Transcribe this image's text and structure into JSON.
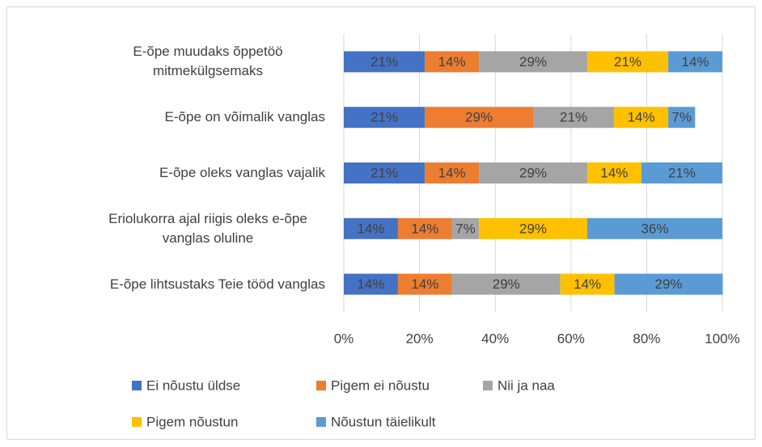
{
  "chart_data": {
    "type": "stacked-bar-horizontal",
    "categories": [
      "E-õpe muudaks õppetöö mitmekülgsemaks",
      "E-õpe on võimalik vanglas",
      "E-õpe oleks vanglas vajalik",
      "Eriolukorra ajal riigis oleks e-õpe vanglas oluline",
      "E-õpe lihtsustaks Teie tööd vanglas"
    ],
    "series": [
      {
        "name": "Ei nõustu üldse",
        "color": "#4472c4",
        "values": [
          21.4,
          21.4,
          21.4,
          14.3,
          14.3
        ],
        "value_labels": [
          "21%",
          "21%",
          "21%",
          "14%",
          "14%"
        ]
      },
      {
        "name": "Pigem ei nõustu",
        "color": "#ed7d31",
        "values": [
          14.3,
          28.6,
          14.3,
          14.3,
          14.3
        ],
        "value_labels": [
          "14%",
          "29%",
          "14%",
          "14%",
          "14%"
        ]
      },
      {
        "name": "Nii ja naa",
        "color": "#a5a5a5",
        "values": [
          28.6,
          21.4,
          28.6,
          7.1,
          28.6
        ],
        "value_labels": [
          "29%",
          "21%",
          "29%",
          "7%",
          "29%"
        ]
      },
      {
        "name": "Pigem nõustun",
        "color": "#ffc000",
        "values": [
          21.4,
          14.3,
          14.3,
          28.6,
          14.3
        ],
        "value_labels": [
          "21%",
          "14%",
          "14%",
          "29%",
          "14%"
        ]
      },
      {
        "name": "Nõustun täielikult",
        "color": "#5b9bd5",
        "values": [
          14.3,
          7.1,
          21.4,
          35.7,
          28.6
        ],
        "value_labels": [
          "14%",
          "7%",
          "21%",
          "36%",
          "29%"
        ]
      }
    ],
    "xlim": [
      0,
      100
    ],
    "xticks": [
      {
        "value": 0,
        "label": "0%"
      },
      {
        "value": 20,
        "label": "20%"
      },
      {
        "value": 40,
        "label": "40%"
      },
      {
        "value": 60,
        "label": "60%"
      },
      {
        "value": 80,
        "label": "80%"
      },
      {
        "value": 100,
        "label": "100%"
      }
    ],
    "grid": true,
    "legend": "bottom"
  }
}
